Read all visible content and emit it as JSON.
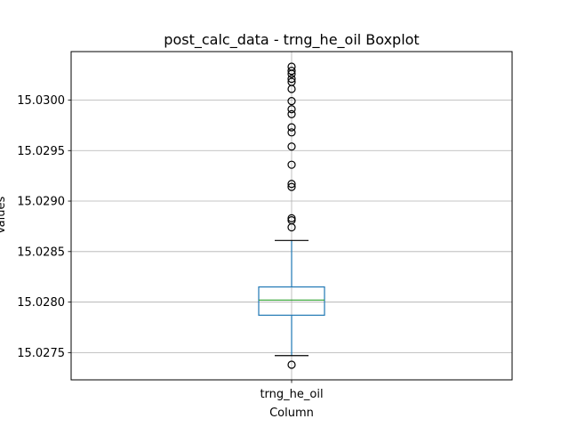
{
  "chart_data": {
    "type": "box",
    "title": "post_calc_data - trng_he_oil Boxplot",
    "xlabel": "Column",
    "ylabel": "Values",
    "categories": [
      "trng_he_oil"
    ],
    "ylim": [
      15.02723,
      15.03048
    ],
    "yticks": [
      "15.0275",
      "15.0280",
      "15.0285",
      "15.0290",
      "15.0295",
      "15.0300"
    ],
    "grid": true,
    "boxes": [
      {
        "name": "trng_he_oil",
        "whisker_low": 15.02747,
        "q1": 15.02787,
        "median": 15.02802,
        "q3": 15.02815,
        "whisker_high": 15.02861,
        "outliers": [
          15.02738,
          15.02874,
          15.02881,
          15.02883,
          15.02914,
          15.02917,
          15.02936,
          15.02954,
          15.02968,
          15.02973,
          15.02986,
          15.02991,
          15.02999,
          15.03011,
          15.03018,
          15.03021,
          15.03026,
          15.03029,
          15.03033
        ]
      }
    ],
    "colors": {
      "box": "#1f77b4",
      "median": "#2ca02c",
      "whisker": "#1f77b4",
      "cap": "#000000",
      "outlier": "#000000",
      "grid": "#b0b0b0"
    }
  }
}
